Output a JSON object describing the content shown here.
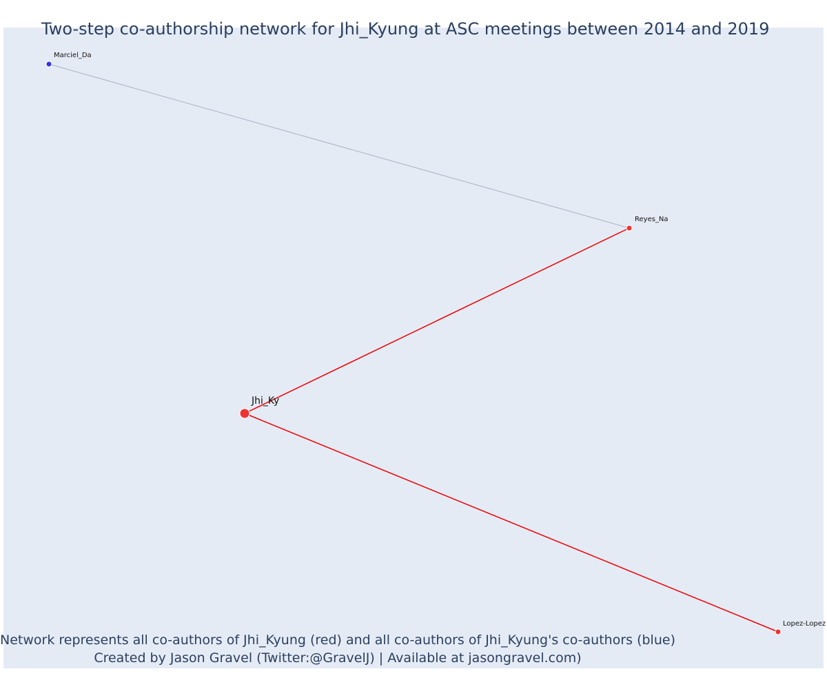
{
  "title": "Two-step co-authorship network for Jhi_Kyung at ASC meetings between 2014 and 2019",
  "footer": {
    "line1": "Network represents all co-authors of Jhi_Kyung (red) and all co-authors of Jhi_Kyung's co-authors (blue)",
    "line2": "Created by Jason Gravel (Twitter:@GravelJ) | Available at jasongravel.com)"
  },
  "colors": {
    "background": "#e5ebf5",
    "first_degree": "#ee3333",
    "second_degree": "#3333ee",
    "first_degree_edge": "#ee0000",
    "second_degree_edge": "#aab0c0",
    "title": "#2a3f5f"
  },
  "nodes": [
    {
      "id": "jhi",
      "label": "Jhi_Ky",
      "group": "focal"
    },
    {
      "id": "reyes",
      "label": "Reyes_Na",
      "group": "first_degree"
    },
    {
      "id": "lopez",
      "label": "Lopez-Lopez",
      "group": "first_degree"
    },
    {
      "id": "marciel",
      "label": "Marciel_Da",
      "group": "second_degree"
    }
  ],
  "edges": [
    {
      "source": "jhi",
      "target": "reyes",
      "type": "first_degree"
    },
    {
      "source": "jhi",
      "target": "lopez",
      "type": "first_degree"
    },
    {
      "source": "reyes",
      "target": "marciel",
      "type": "second_degree"
    }
  ]
}
